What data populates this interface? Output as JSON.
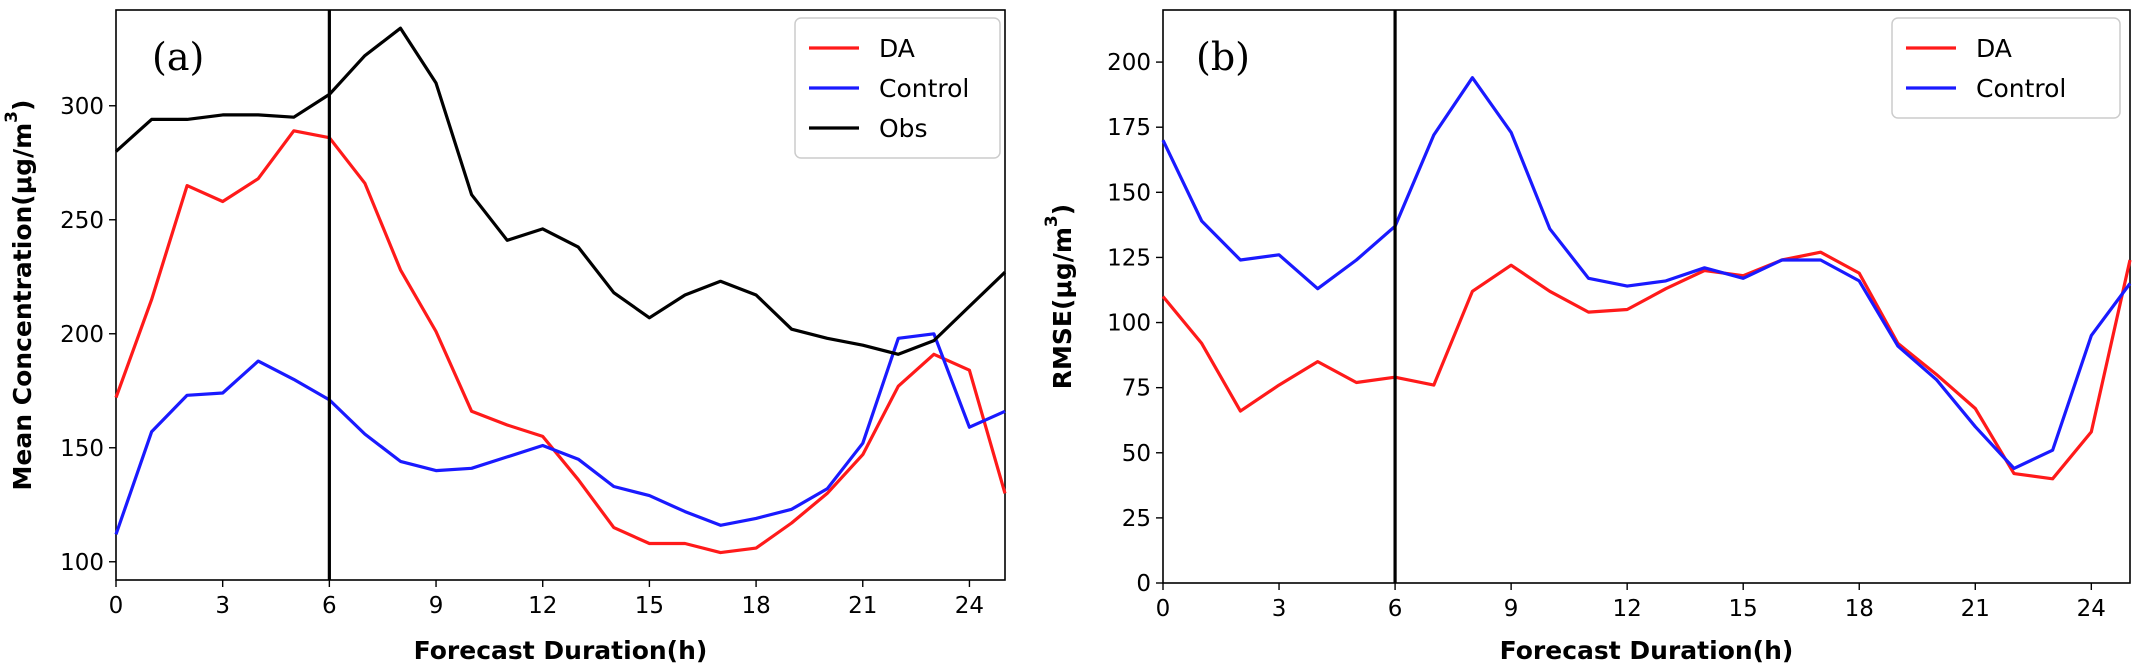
{
  "chart_data": [
    {
      "type": "line",
      "panel_label": "(a)",
      "xlabel": "Forecast Duration(h)",
      "ylabel": "Mean Concentration(μg/m",
      "ylabel_sup": "3",
      "ylabel_close": ")",
      "xlim": [
        0,
        25
      ],
      "ylim": [
        92,
        342
      ],
      "xticks": [
        0,
        3,
        6,
        9,
        12,
        15,
        18,
        21,
        24
      ],
      "yticks": [
        100,
        150,
        200,
        250,
        300
      ],
      "vline_x": 6,
      "legend_position": "top-right",
      "grid": false,
      "x": [
        0,
        1,
        2,
        3,
        4,
        5,
        6,
        7,
        8,
        9,
        10,
        11,
        12,
        13,
        14,
        15,
        16,
        17,
        18,
        19,
        20,
        21,
        22,
        23,
        24,
        25
      ],
      "series": [
        {
          "name": "DA",
          "color": "#ff1a1a",
          "values": [
            172,
            215,
            265,
            258,
            268,
            289,
            286,
            266,
            228,
            201,
            166,
            160,
            155,
            136,
            115,
            108,
            108,
            104,
            106,
            117,
            130,
            147,
            177,
            191,
            184,
            130
          ]
        },
        {
          "name": "Control",
          "color": "#1a1aff",
          "values": [
            112,
            157,
            173,
            174,
            188,
            180,
            171,
            156,
            144,
            140,
            141,
            146,
            151,
            145,
            133,
            129,
            122,
            116,
            119,
            123,
            132,
            152,
            198,
            200,
            159,
            166
          ]
        },
        {
          "name": "Obs",
          "color": "#000000",
          "values": [
            280,
            294,
            294,
            296,
            296,
            295,
            305,
            322,
            334,
            310,
            261,
            241,
            246,
            238,
            218,
            207,
            217,
            223,
            217,
            202,
            198,
            195,
            191,
            197,
            212,
            227
          ]
        }
      ]
    },
    {
      "type": "line",
      "panel_label": "(b)",
      "xlabel": "Forecast Duration(h)",
      "ylabel": "RMSE(μg/m",
      "ylabel_sup": "3",
      "ylabel_close": ")",
      "xlim": [
        0,
        25
      ],
      "ylim": [
        0,
        220
      ],
      "xticks": [
        0,
        3,
        6,
        9,
        12,
        15,
        18,
        21,
        24
      ],
      "yticks": [
        0,
        25,
        50,
        75,
        100,
        125,
        150,
        175,
        200
      ],
      "vline_x": 6,
      "legend_position": "top-right",
      "grid": false,
      "x": [
        0,
        1,
        2,
        3,
        4,
        5,
        6,
        7,
        8,
        9,
        10,
        11,
        12,
        13,
        14,
        15,
        16,
        17,
        18,
        19,
        20,
        21,
        22,
        23,
        24,
        25
      ],
      "series": [
        {
          "name": "DA",
          "color": "#ff1a1a",
          "values": [
            110,
            92,
            66,
            76,
            85,
            77,
            79,
            76,
            112,
            122,
            112,
            104,
            105,
            113,
            120,
            118,
            124,
            127,
            119,
            92,
            80,
            67,
            42,
            40,
            58,
            124
          ]
        },
        {
          "name": "Control",
          "color": "#1a1aff",
          "values": [
            170,
            139,
            124,
            126,
            113,
            124,
            137,
            172,
            194,
            173,
            136,
            117,
            114,
            116,
            121,
            117,
            124,
            124,
            116,
            91,
            78,
            60,
            44,
            51,
            95,
            115
          ]
        }
      ]
    }
  ]
}
